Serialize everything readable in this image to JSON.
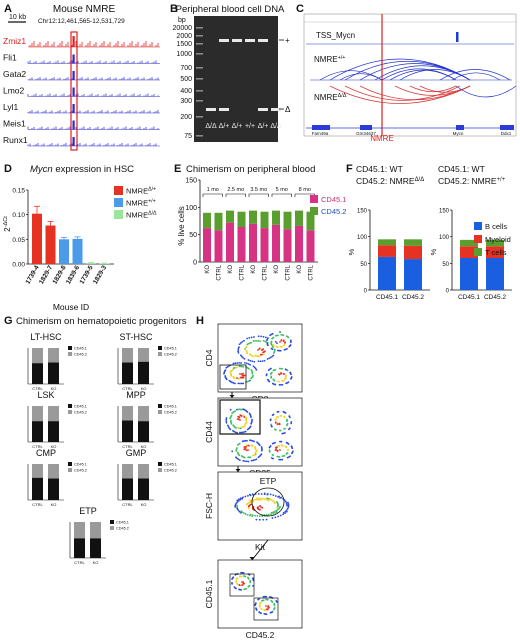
{
  "panelA": {
    "letter": "A",
    "title": "Mouse NMRE",
    "scale": "10 kb",
    "coords": "Chr12:12,461,565-12,531,729",
    "tracks": [
      "Zmiz1",
      "Fli1",
      "Gata2",
      "Lmo2",
      "Lyl1",
      "Meis1",
      "Runx1"
    ]
  },
  "panelB": {
    "letter": "B",
    "title": "Peripheral blood cell DNA",
    "unit": "bp",
    "ladder": [
      "20000",
      "2000",
      "1500",
      "1000",
      "700",
      "500",
      "400",
      "300",
      "200",
      "75"
    ],
    "genotypes": [
      "Δ/Δ",
      "Δ/+",
      "Δ/+",
      "+/+",
      "Δ/+",
      "Δ/Δ"
    ],
    "band_labels": [
      "+",
      "Δ"
    ]
  },
  "panelC": {
    "letter": "C",
    "tss_label": "TSS_Mycn",
    "wt_label": "NMRE",
    "wt_sup": "+/+",
    "ko_label": "NMRE",
    "ko_sup": "Δ/Δ",
    "nmre_label": "NMRE",
    "genes": [
      "Fam49a",
      "Gm34637",
      "Mycn",
      "Ddx1"
    ]
  },
  "panelD": {
    "letter": "D",
    "title_gene": "Mycn",
    "title_rest": " expression in HSC",
    "ylabel": "2",
    "ylabel_sup": "-ΔCt",
    "xlabel": "Mouse ID",
    "legend": [
      {
        "label": "NMRE",
        "sup": "Δ/+",
        "color": "#e53223"
      },
      {
        "label": "NMRE",
        "sup": "+/+",
        "color": "#4c9be8"
      },
      {
        "label": "NMRE",
        "sup": "Δ/Δ",
        "color": "#9be69b"
      }
    ],
    "chart_data": {
      "type": "bar",
      "categories": [
        "1739-4",
        "1829-7",
        "1829-8",
        "1839-6",
        "1739-5",
        "1829-3"
      ],
      "values": [
        0.102,
        0.078,
        0.05,
        0.051,
        0.002,
        0.001
      ],
      "errors": [
        0.015,
        0.008,
        0.004,
        0.004,
        0.001,
        0.001
      ],
      "colors": [
        "#e53223",
        "#e53223",
        "#4c9be8",
        "#4c9be8",
        "#9be69b",
        "#9be69b"
      ],
      "ylim": [
        0,
        0.15
      ],
      "yticks": [
        "0.00",
        "0.05",
        "0.10",
        "0.15"
      ]
    }
  },
  "panelE": {
    "letter": "E",
    "title": "Chimerism on peripheral blood",
    "ylabel": "% live cells",
    "legend": [
      {
        "label": "CD45.1",
        "color": "#d63384"
      },
      {
        "label": "CD45.2",
        "color": "#5a9e2f"
      }
    ],
    "timepoints": [
      "1 mo",
      "2.5 mo",
      "3.5 mo",
      "5 mo",
      "8 mo"
    ],
    "chart_data": {
      "type": "bar",
      "categories": [
        "KO",
        "CTRL",
        "KO",
        "CTRL",
        "KO",
        "CTRL",
        "KO",
        "CTRL",
        "KO",
        "CTRL"
      ],
      "series": [
        {
          "name": "CD45.1",
          "values": [
            62,
            58,
            72,
            64,
            70,
            62,
            68,
            60,
            66,
            58
          ]
        },
        {
          "name": "CD45.2",
          "values": [
            28,
            32,
            22,
            28,
            24,
            30,
            26,
            32,
            28,
            34
          ]
        }
      ],
      "ylim": [
        0,
        150
      ],
      "yticks": [
        "0",
        "50",
        "100",
        "150"
      ]
    }
  },
  "panelF": {
    "letter": "F",
    "charts": [
      {
        "line1": "CD45.1: WT",
        "line2": "CD45.2: NMRE",
        "sup": "Δ/Δ"
      },
      {
        "line1": "CD45.1: WT",
        "line2": "CD45.2: NMRE",
        "sup": "+/+"
      }
    ],
    "ylabel": "%",
    "legend": [
      {
        "label": "B cells",
        "color": "#1a5fe0"
      },
      {
        "label": "Myeloid",
        "color": "#e53223"
      },
      {
        "label": "T cells",
        "color": "#5a9e2f"
      }
    ],
    "chart_data": [
      {
        "type": "bar",
        "categories": [
          "CD45.1",
          "CD45.2"
        ],
        "series": [
          {
            "name": "B cells",
            "values": [
              62,
              58
            ]
          },
          {
            "name": "Myeloid",
            "values": [
              22,
              25
            ]
          },
          {
            "name": "T cells",
            "values": [
              11,
              12
            ]
          }
        ],
        "ylim": [
          0,
          150
        ],
        "yticks": [
          "0",
          "50",
          "100",
          "150"
        ]
      },
      {
        "type": "bar",
        "categories": [
          "CD45.1",
          "CD45.2"
        ],
        "series": [
          {
            "name": "B cells",
            "values": [
              60,
              60
            ]
          },
          {
            "name": "Myeloid",
            "values": [
              22,
              22
            ]
          },
          {
            "name": "T cells",
            "values": [
              12,
              12
            ]
          }
        ],
        "ylim": [
          0,
          150
        ],
        "yticks": [
          "0",
          "50",
          "100",
          "150"
        ]
      }
    ]
  },
  "panelG": {
    "letter": "G",
    "title": "Chimerism on hematopoietic progenitors",
    "chart_data": [
      {
        "type": "bar",
        "title": "LT-HSC",
        "categories": [
          "CTRL",
          "KO"
        ],
        "series": [
          {
            "name": "CD45.1",
            "values": [
              58,
              60
            ]
          },
          {
            "name": "CD45.2",
            "values": [
              42,
              40
            ]
          }
        ],
        "ylim": [
          0,
          100
        ]
      },
      {
        "type": "bar",
        "title": "ST-HSC",
        "categories": [
          "CTRL",
          "KO"
        ],
        "series": [
          {
            "name": "CD45.1",
            "values": [
              60,
              62
            ]
          },
          {
            "name": "CD45.2",
            "values": [
              40,
              38
            ]
          }
        ],
        "ylim": [
          0,
          100
        ]
      },
      {
        "type": "bar",
        "title": "LSK",
        "categories": [
          "CTRL",
          "KO"
        ],
        "series": [
          {
            "name": "CD45.1",
            "values": [
              58,
              58
            ]
          },
          {
            "name": "CD45.2",
            "values": [
              42,
              42
            ]
          }
        ],
        "ylim": [
          0,
          100
        ]
      },
      {
        "type": "bar",
        "title": "MPP",
        "categories": [
          "CTRL",
          "KO"
        ],
        "series": [
          {
            "name": "CD45.1",
            "values": [
              60,
              58
            ]
          },
          {
            "name": "CD45.2",
            "values": [
              40,
              42
            ]
          }
        ],
        "ylim": [
          0,
          100
        ]
      },
      {
        "type": "bar",
        "title": "CMP",
        "categories": [
          "CTRL",
          "KO"
        ],
        "series": [
          {
            "name": "CD45.1",
            "values": [
              62,
              60
            ]
          },
          {
            "name": "CD45.2",
            "values": [
              38,
              40
            ]
          }
        ],
        "ylim": [
          0,
          100
        ]
      },
      {
        "type": "bar",
        "title": "GMP",
        "categories": [
          "CTRL",
          "KO"
        ],
        "series": [
          {
            "name": "CD45.1",
            "values": [
              60,
              60
            ]
          },
          {
            "name": "CD45.2",
            "values": [
              40,
              40
            ]
          }
        ],
        "ylim": [
          0,
          100
        ]
      },
      {
        "type": "bar",
        "title": "ETP",
        "categories": [
          "CTRL",
          "KO"
        ],
        "series": [
          {
            "name": "CD45.1",
            "values": [
              55,
              55
            ]
          },
          {
            "name": "CD45.2",
            "values": [
              45,
              45
            ]
          }
        ],
        "ylim": [
          0,
          100
        ]
      }
    ]
  },
  "panelH": {
    "letter": "H",
    "plots": [
      {
        "ylabel": "CD4",
        "xlabel": "CD8"
      },
      {
        "ylabel": "CD44",
        "xlabel": "CD25"
      },
      {
        "ylabel": "FSC-H",
        "xlabel": "Kit",
        "gate": "ETP"
      },
      {
        "ylabel": "CD45.1",
        "xlabel": "CD45.2"
      }
    ]
  }
}
